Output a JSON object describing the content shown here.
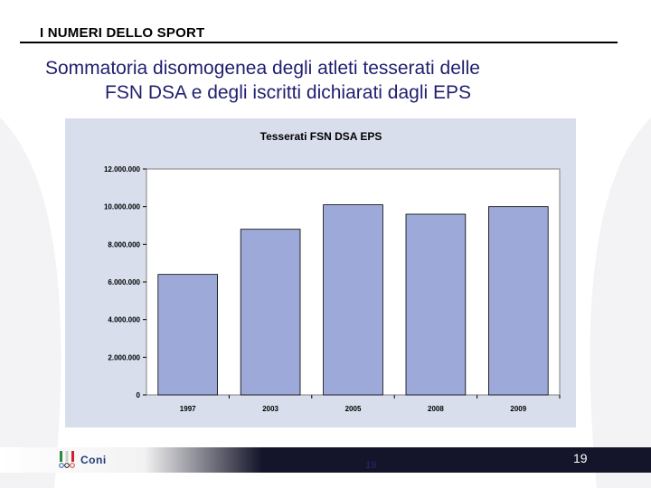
{
  "header": {
    "title": "I NUMERI DELLO SPORT"
  },
  "slide": {
    "title_line1": "Sommatoria disomogenea degli atleti tesserati delle",
    "title_line2": "FSN DSA e degli iscritti dichiarati dagli EPS"
  },
  "footer": {
    "logo_text": "Coni",
    "page_number": "19",
    "page_number_right": "19"
  },
  "colors": {
    "bar": "#9da9d8",
    "plot_bg": "#ffffff",
    "chart_bg": "#d8deec",
    "title_text": "#1f1f6f"
  },
  "chart_data": {
    "type": "bar",
    "title": "Tesserati FSN DSA EPS",
    "categories": [
      "1997",
      "2003",
      "2005",
      "2008",
      "2009"
    ],
    "values": [
      6400000,
      8800000,
      10100000,
      9600000,
      10000000
    ],
    "ylim": [
      0,
      12000000
    ],
    "yticks": [
      0,
      2000000,
      4000000,
      6000000,
      8000000,
      10000000,
      12000000
    ],
    "ytick_labels": [
      "0",
      "2.000.000",
      "4.000.000",
      "6.000.000",
      "8.000.000",
      "10.000.000",
      "12.000.000"
    ],
    "xlabel": "",
    "ylabel": "",
    "grid": false,
    "legend": "none"
  }
}
